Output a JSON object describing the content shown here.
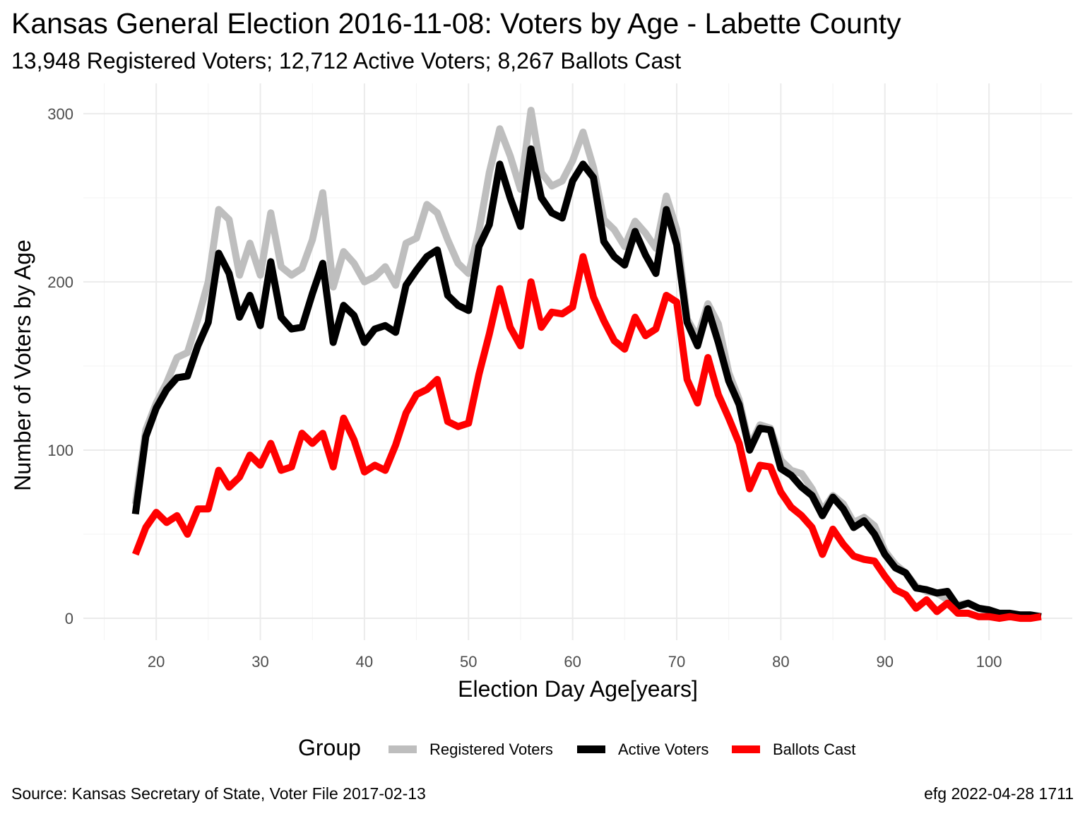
{
  "title": "Kansas General Election 2016-11-08:  Voters by Age - Labette County",
  "subtitle": "13,948 Registered Voters; 12,712 Active Voters; 8,267 Ballots Cast",
  "caption_left": "Source:  Kansas Secretary of State, Voter File  2017-02-13",
  "caption_right": "efg 2022-04-28 1711",
  "legend": {
    "title": "Group",
    "items": [
      {
        "label": "Registered Voters",
        "color": "#bebebe"
      },
      {
        "label": "Active Voters",
        "color": "#000000"
      },
      {
        "label": "Ballots Cast",
        "color": "#ff0000"
      }
    ]
  },
  "chart_data": {
    "type": "line",
    "xlabel": "Election Day Age[years]",
    "ylabel": "Number of Voters by Age",
    "xlim": [
      13,
      108
    ],
    "ylim": [
      -13,
      318
    ],
    "x_ticks": [
      20,
      30,
      40,
      50,
      60,
      70,
      80,
      90,
      100
    ],
    "y_ticks": [
      0,
      100,
      200,
      300
    ],
    "grid": true,
    "legend_position": "bottom",
    "x_start": 18,
    "series": [
      {
        "name": "Registered Voters",
        "color": "#bebebe",
        "values": [
          68,
          112,
          128,
          140,
          155,
          158,
          178,
          200,
          243,
          237,
          204,
          223,
          204,
          241,
          209,
          204,
          208,
          225,
          253,
          197,
          218,
          211,
          200,
          203,
          209,
          198,
          223,
          226,
          246,
          241,
          225,
          211,
          205,
          230,
          265,
          291,
          275,
          255,
          302,
          265,
          257,
          260,
          272,
          289,
          268,
          237,
          231,
          221,
          236,
          229,
          220,
          251,
          231,
          178,
          167,
          187,
          175,
          146,
          130,
          102,
          115,
          113,
          94,
          88,
          86,
          77,
          64,
          73,
          68,
          57,
          60,
          55,
          40,
          32,
          27,
          19,
          16,
          15,
          11,
          8,
          9,
          6,
          4,
          3,
          2,
          2,
          2,
          1
        ]
      },
      {
        "name": "Active Voters",
        "color": "#000000",
        "values": [
          62,
          108,
          125,
          136,
          143,
          144,
          162,
          176,
          217,
          205,
          179,
          192,
          174,
          212,
          179,
          172,
          173,
          193,
          211,
          164,
          186,
          180,
          164,
          172,
          174,
          170,
          198,
          207,
          215,
          219,
          192,
          186,
          183,
          221,
          234,
          270,
          250,
          233,
          279,
          250,
          241,
          238,
          260,
          270,
          262,
          224,
          215,
          210,
          230,
          216,
          205,
          243,
          222,
          176,
          162,
          184,
          164,
          141,
          127,
          100,
          113,
          112,
          89,
          85,
          78,
          73,
          61,
          72,
          65,
          54,
          58,
          50,
          38,
          30,
          27,
          18,
          17,
          15,
          16,
          7,
          9,
          6,
          5,
          3,
          3,
          2,
          2,
          1
        ]
      },
      {
        "name": "Ballots Cast",
        "color": "#ff0000",
        "values": [
          38,
          54,
          63,
          57,
          61,
          50,
          65,
          65,
          88,
          78,
          84,
          97,
          91,
          104,
          88,
          90,
          110,
          104,
          110,
          90,
          119,
          106,
          87,
          91,
          88,
          103,
          122,
          133,
          136,
          142,
          117,
          114,
          116,
          145,
          169,
          196,
          173,
          162,
          200,
          173,
          182,
          181,
          185,
          215,
          191,
          177,
          165,
          160,
          179,
          168,
          172,
          192,
          188,
          142,
          128,
          155,
          133,
          119,
          104,
          77,
          91,
          90,
          75,
          66,
          61,
          54,
          38,
          53,
          44,
          37,
          35,
          34,
          25,
          17,
          14,
          6,
          11,
          4,
          9,
          3,
          3,
          1,
          1,
          0,
          1,
          0,
          0,
          1
        ]
      }
    ]
  }
}
